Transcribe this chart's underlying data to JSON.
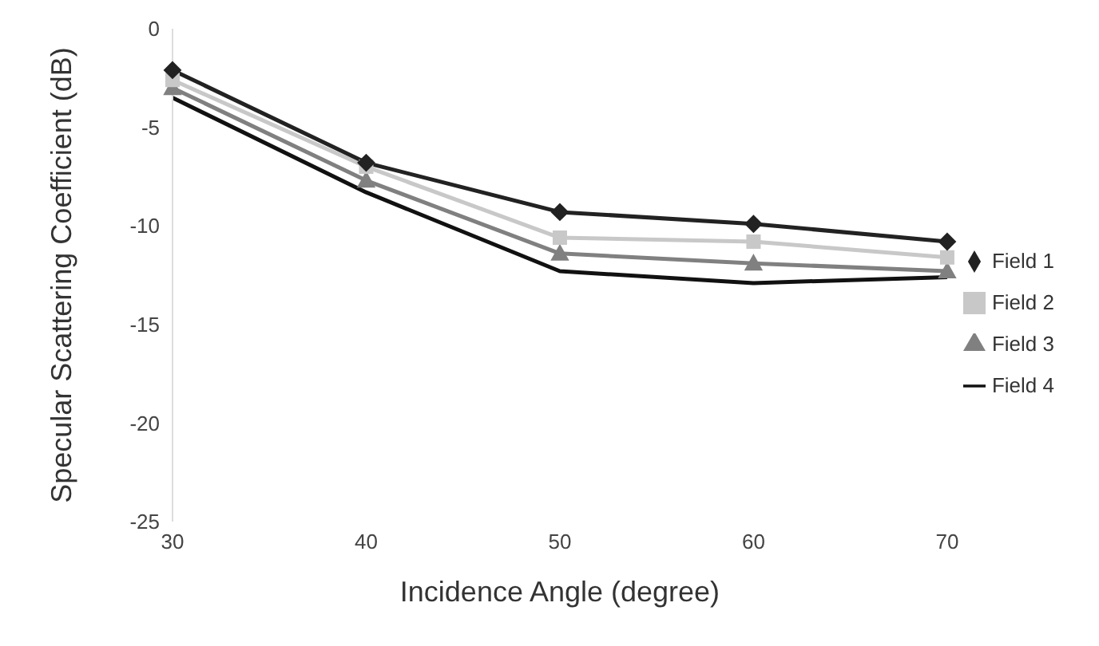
{
  "chart_data": {
    "type": "line",
    "xlabel": "Incidence Angle  (degree)",
    "ylabel": "Specular Scattering Coefficient (dB)",
    "categories": [
      "30",
      "40",
      "50",
      "60",
      "70"
    ],
    "ylim": [
      -25,
      0
    ],
    "yticks": [
      -25,
      -20,
      -15,
      -10,
      -5,
      0
    ],
    "grid": false,
    "legend": "right",
    "series": [
      {
        "name": "Field 1",
        "color": "#222222",
        "marker": "diamond",
        "values": [
          -2.1,
          -6.8,
          -9.3,
          -9.9,
          -10.8
        ]
      },
      {
        "name": "Field 2",
        "color": "#c8c8c8",
        "marker": "square",
        "values": [
          -2.6,
          -7.0,
          -10.6,
          -10.8,
          -11.6
        ]
      },
      {
        "name": "Field 3",
        "color": "#808080",
        "marker": "triangle",
        "values": [
          -3.0,
          -7.7,
          -11.4,
          -11.9,
          -12.3
        ]
      },
      {
        "name": "Field 4",
        "color": "#111111",
        "marker": "none",
        "values": [
          -3.5,
          -8.3,
          -12.3,
          -12.9,
          -12.6
        ]
      }
    ]
  }
}
